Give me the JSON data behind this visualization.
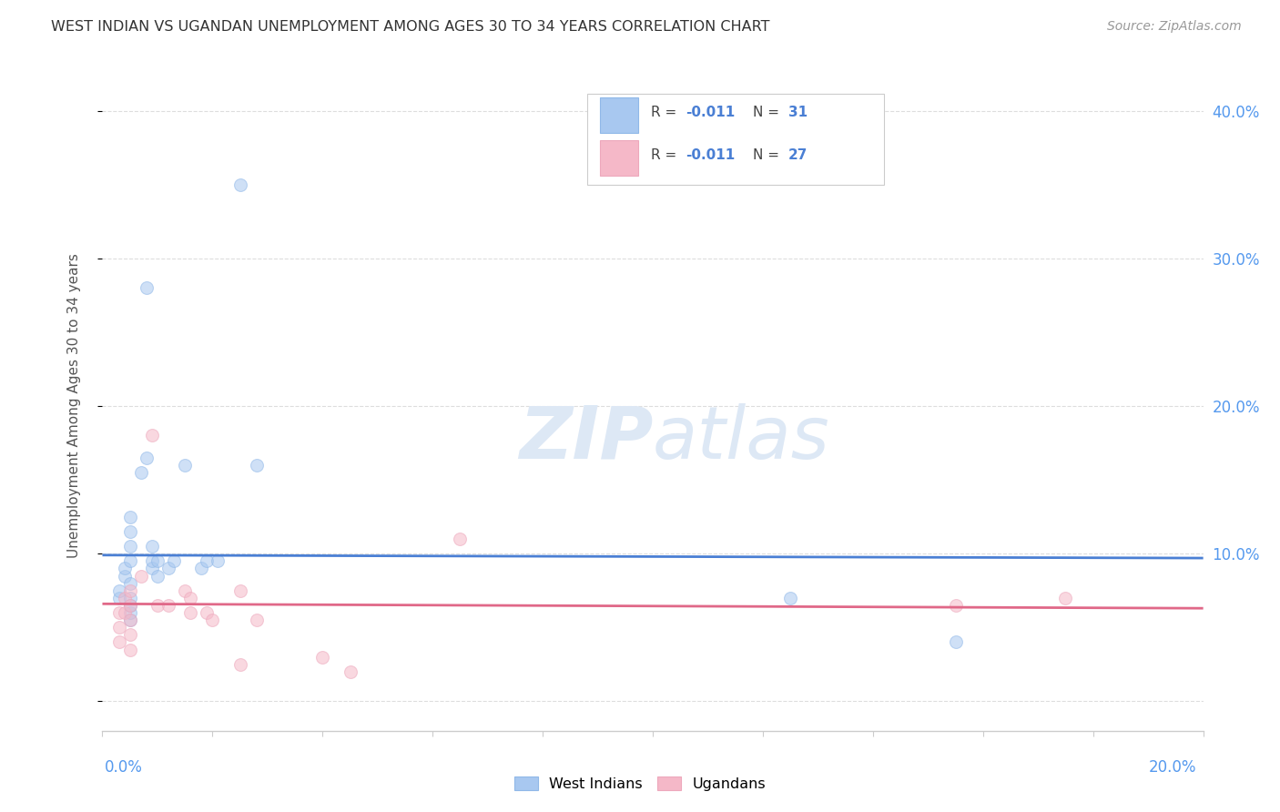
{
  "title": "WEST INDIAN VS UGANDAN UNEMPLOYMENT AMONG AGES 30 TO 34 YEARS CORRELATION CHART",
  "source": "Source: ZipAtlas.com",
  "ylabel": "Unemployment Among Ages 30 to 34 years",
  "right_ytick_labels": [
    "",
    "10.0%",
    "20.0%",
    "30.0%",
    "40.0%"
  ],
  "right_ytick_values": [
    0.0,
    0.1,
    0.2,
    0.3,
    0.4
  ],
  "xlim": [
    0.0,
    0.2
  ],
  "ylim": [
    -0.02,
    0.42
  ],
  "legend_blue_r": "-0.011",
  "legend_blue_n": "31",
  "legend_pink_r": "-0.011",
  "legend_pink_n": "27",
  "blue_label": "West Indians",
  "pink_label": "Ugandans",
  "blue_color": "#a8c8f0",
  "pink_color": "#f5b8c8",
  "blue_scatter_edge": "#90b8e8",
  "pink_scatter_edge": "#eda8bc",
  "blue_line_color": "#4a7fd4",
  "pink_line_color": "#e06888",
  "title_color": "#333333",
  "source_color": "#999999",
  "watermark_zip_color": "#dde8f5",
  "watermark_atlas_color": "#dde8f5",
  "axis_color": "#cccccc",
  "grid_color": "#dddddd",
  "right_tick_color": "#5599ee",
  "x_label_color": "#5599ee",
  "blue_scatter_x": [
    0.003,
    0.003,
    0.004,
    0.004,
    0.005,
    0.005,
    0.005,
    0.005,
    0.005,
    0.005,
    0.005,
    0.005,
    0.005,
    0.007,
    0.008,
    0.008,
    0.009,
    0.009,
    0.009,
    0.01,
    0.01,
    0.012,
    0.013,
    0.015,
    0.018,
    0.019,
    0.021,
    0.025,
    0.028,
    0.125,
    0.155
  ],
  "blue_scatter_y": [
    0.07,
    0.075,
    0.085,
    0.09,
    0.055,
    0.06,
    0.065,
    0.07,
    0.08,
    0.095,
    0.105,
    0.115,
    0.125,
    0.155,
    0.165,
    0.28,
    0.09,
    0.095,
    0.105,
    0.085,
    0.095,
    0.09,
    0.095,
    0.16,
    0.09,
    0.095,
    0.095,
    0.35,
    0.16,
    0.07,
    0.04
  ],
  "pink_scatter_x": [
    0.003,
    0.003,
    0.003,
    0.004,
    0.004,
    0.005,
    0.005,
    0.005,
    0.005,
    0.005,
    0.007,
    0.009,
    0.01,
    0.012,
    0.015,
    0.016,
    0.016,
    0.019,
    0.02,
    0.025,
    0.025,
    0.028,
    0.04,
    0.045,
    0.065,
    0.155,
    0.175
  ],
  "pink_scatter_y": [
    0.04,
    0.05,
    0.06,
    0.06,
    0.07,
    0.035,
    0.045,
    0.055,
    0.065,
    0.075,
    0.085,
    0.18,
    0.065,
    0.065,
    0.075,
    0.06,
    0.07,
    0.06,
    0.055,
    0.025,
    0.075,
    0.055,
    0.03,
    0.02,
    0.11,
    0.065,
    0.07
  ],
  "blue_line_x0": 0.0,
  "blue_line_x1": 0.2,
  "blue_line_y0": 0.099,
  "blue_line_y1": 0.097,
  "pink_line_x0": 0.0,
  "pink_line_x1": 0.2,
  "pink_line_y0": 0.066,
  "pink_line_y1": 0.063,
  "marker_size": 100,
  "marker_alpha": 0.55,
  "marker_lw": 0.8
}
